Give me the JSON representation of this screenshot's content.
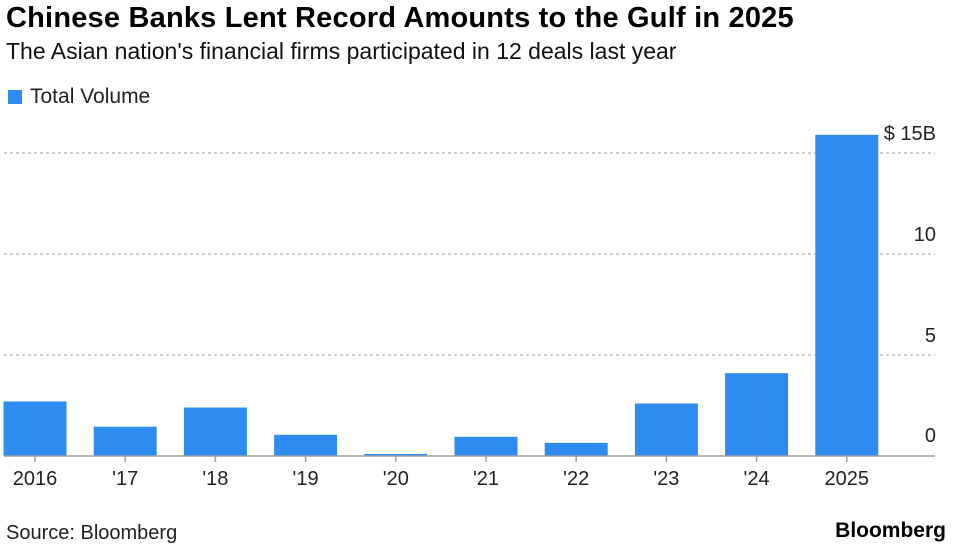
{
  "header": {
    "title": "Chinese Banks Lent Record Amounts to the Gulf in 2025",
    "subtitle": "The Asian nation's financial firms participated in 12 deals last year"
  },
  "footer": {
    "source": "Source: Bloomberg",
    "brand": "Bloomberg"
  },
  "colors": {
    "bar": "#2e8cf0",
    "grid": "#bdbdbd",
    "baseline": "#9e9e9e"
  },
  "chart_data": {
    "type": "bar",
    "title": "Chinese Banks Lent Record Amounts to the Gulf in 2025",
    "subtitle": "The Asian nation's financial firms participated in 12 deals last year",
    "legend": [
      "Total Volume"
    ],
    "legend_position": "top-left",
    "categories": [
      "2016",
      "'17",
      "'18",
      "'19",
      "'20",
      "'21",
      "'22",
      "'23",
      "'24",
      "2025"
    ],
    "series": [
      {
        "name": "Total Volume",
        "values": [
          2.7,
          1.45,
          2.4,
          1.05,
          0.1,
          0.95,
          0.65,
          2.6,
          4.1,
          15.9
        ]
      }
    ],
    "yticks": [
      0,
      5,
      10,
      15
    ],
    "ytick_labels": [
      "0",
      "5",
      "10",
      "$ 15B"
    ],
    "ylim": [
      0,
      16
    ],
    "yaxis_side": "right",
    "grid": true,
    "xlabel": "",
    "ylabel": ""
  }
}
